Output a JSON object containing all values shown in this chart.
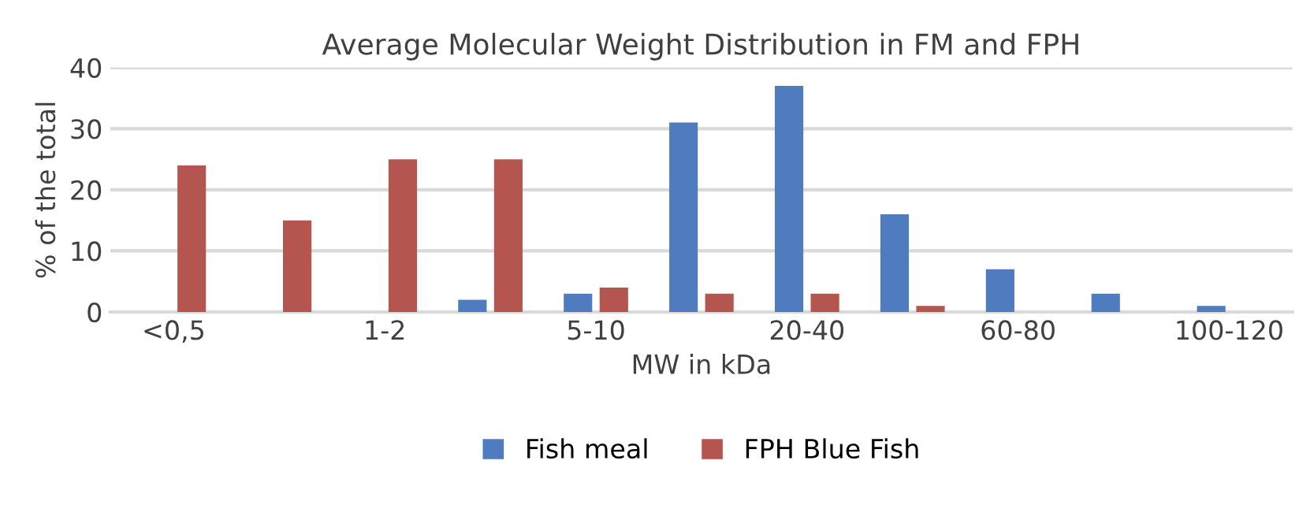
{
  "chart_data": {
    "type": "bar",
    "title": "Average Molecular Weight Distribution in FM and FPH",
    "xlabel": "MW in kDa",
    "ylabel": "% of the total",
    "categories": [
      "<0,5",
      null,
      "1-2",
      null,
      "5-10",
      null,
      "20-40",
      null,
      "60-80",
      null,
      "100-120"
    ],
    "series": [
      {
        "name": "Fish meal",
        "color": "#4f7bbf",
        "values": [
          0,
          0,
          0,
          2,
          3,
          31,
          37,
          16,
          7,
          3,
          1
        ]
      },
      {
        "name": "FPH Blue Fish",
        "color": "#b55550",
        "values": [
          24,
          15,
          25,
          25,
          4,
          3,
          3,
          1,
          0,
          0,
          0
        ]
      }
    ],
    "ylim": [
      0,
      40
    ],
    "yticks": [
      0,
      10,
      20,
      30,
      40
    ],
    "grid": "y",
    "legend": "bottom"
  }
}
